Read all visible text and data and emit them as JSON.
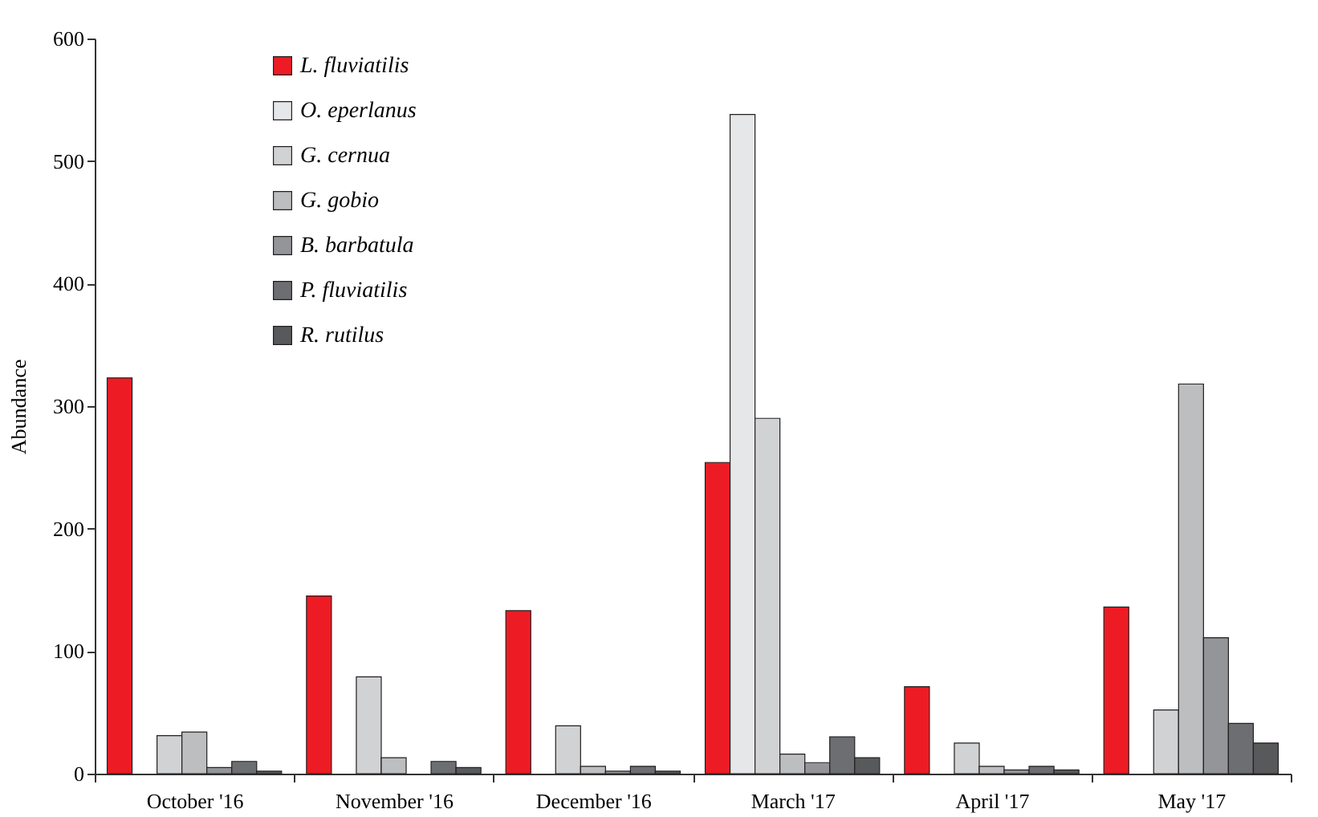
{
  "chart_data": {
    "type": "bar",
    "ylabel": "Abundance",
    "categories": [
      "October '16",
      "November '16",
      "December '16",
      "March '17",
      "April '17",
      "May '17"
    ],
    "series": [
      {
        "name": "L. fluviatilis",
        "color": "#ed1c24",
        "values": [
          323,
          145,
          133,
          254,
          71,
          136
        ]
      },
      {
        "name": "O. eperlanus",
        "color": "#e6e7e8",
        "values": [
          null,
          null,
          null,
          538,
          null,
          null
        ]
      },
      {
        "name": "G. cernua",
        "color": "#d1d2d4",
        "values": [
          31,
          79,
          39,
          290,
          25,
          52
        ]
      },
      {
        "name": "G. gobio",
        "color": "#bcbec0",
        "values": [
          34,
          13,
          6,
          16,
          6,
          318
        ]
      },
      {
        "name": "B. barbatula",
        "color": "#939598",
        "values": [
          5,
          null,
          2,
          9,
          3,
          111
        ]
      },
      {
        "name": "P. fluviatilis",
        "color": "#6d6e71",
        "values": [
          10,
          10,
          6,
          30,
          6,
          41
        ]
      },
      {
        "name": "R. rutilus",
        "color": "#58595b",
        "values": [
          2,
          5,
          2,
          13,
          3,
          25
        ]
      }
    ],
    "ylim": [
      0,
      600
    ],
    "yticks": [
      0,
      100,
      200,
      300,
      400,
      500,
      600
    ],
    "grid": false,
    "legend": "top left"
  }
}
